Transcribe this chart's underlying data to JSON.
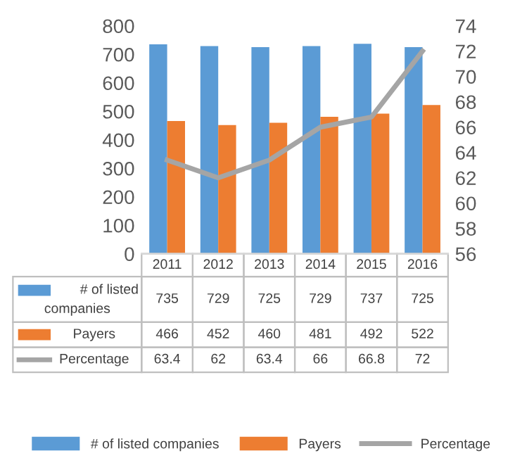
{
  "chart_data": {
    "type": "bar",
    "categories": [
      "2011",
      "2012",
      "2013",
      "2014",
      "2015",
      "2016"
    ],
    "series": [
      {
        "name": "# of listed companies",
        "color": "#5b9bd5",
        "values": [
          735,
          729,
          725,
          729,
          737,
          725
        ]
      },
      {
        "name": "Payers",
        "color": "#ed7d31",
        "values": [
          466,
          452,
          460,
          481,
          492,
          522
        ]
      },
      {
        "name": "Percentage",
        "color": "#a5a5a5",
        "type": "line",
        "axis": "y2",
        "values": [
          63.4,
          62,
          63.4,
          66,
          66.8,
          72
        ]
      }
    ],
    "ylim": [
      0,
      800
    ],
    "yticks": [
      0,
      100,
      200,
      300,
      400,
      500,
      600,
      700,
      800
    ],
    "y2lim": [
      56,
      74
    ],
    "y2ticks": [
      56,
      58,
      60,
      62,
      64,
      66,
      68,
      70,
      72,
      74
    ],
    "data_labels": true,
    "legend": "bottom"
  }
}
